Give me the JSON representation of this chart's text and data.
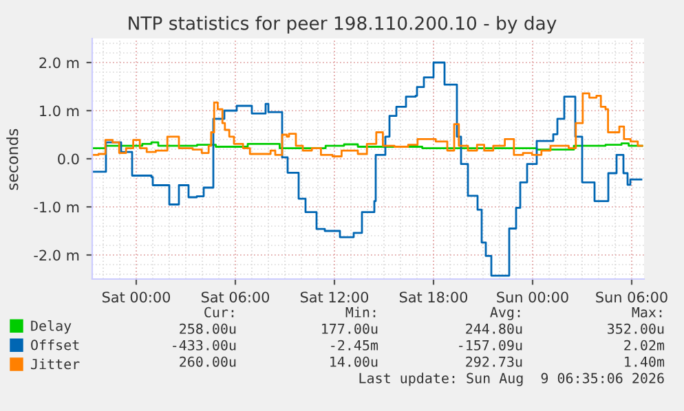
{
  "chart_data": {
    "type": "step",
    "title": "NTP statistics for peer 198.110.200.10 - by day",
    "ylabel": "seconds",
    "xlim": [
      "2026-08-07T21:20",
      "2026-08-09T06:45"
    ],
    "ylim": [
      -2.5,
      2.5
    ],
    "xticks": [
      {
        "value": "2026-08-08T00:00",
        "label": "Sat 00:00"
      },
      {
        "value": "2026-08-08T06:00",
        "label": "Sat 06:00"
      },
      {
        "value": "2026-08-08T12:00",
        "label": "Sat 12:00"
      },
      {
        "value": "2026-08-08T18:00",
        "label": "Sat 18:00"
      },
      {
        "value": "2026-08-09T00:00",
        "label": "Sun 00:00"
      },
      {
        "value": "2026-08-09T06:00",
        "label": "Sun 06:00"
      }
    ],
    "yticks": [
      {
        "value": -2,
        "label": "-2.0 m"
      },
      {
        "value": -1,
        "label": "-1.0 m"
      },
      {
        "value": 0,
        "label": "0.0"
      },
      {
        "value": 1,
        "label": "1.0 m"
      },
      {
        "value": 2,
        "label": "2.0 m"
      }
    ],
    "grid": true,
    "legend": "bottom",
    "marker": "none",
    "line_style": "solid",
    "series": [
      {
        "name": "Delay",
        "color": "#00cc00",
        "x": [
          "2026-08-07T21:20",
          "2026-08-07T22:08",
          "2026-08-08T00:22",
          "2026-08-08T00:55",
          "2026-08-08T01:20",
          "2026-08-08T03:41",
          "2026-08-08T04:49",
          "2026-08-08T06:45",
          "2026-08-08T08:41",
          "2026-08-08T10:38",
          "2026-08-08T11:28",
          "2026-08-08T12:35",
          "2026-08-08T13:25",
          "2026-08-08T17:19",
          "2026-08-08T21:28",
          "2026-08-09T00:15",
          "2026-08-09T02:30",
          "2026-08-09T04:25",
          "2026-08-09T05:23",
          "2026-08-09T05:49",
          "2026-08-09T06:38"
        ],
        "values": [
          0.22,
          0.27,
          0.31,
          0.34,
          0.27,
          0.29,
          0.25,
          0.31,
          0.22,
          0.22,
          0.27,
          0.3,
          0.25,
          0.22,
          0.22,
          0.19,
          0.27,
          0.29,
          0.32,
          0.27,
          0.27
        ]
      },
      {
        "name": "Offset",
        "color": "#0066b3",
        "x": [
          "2026-08-07T21:20",
          "2026-08-07T21:50",
          "2026-08-07T22:10",
          "2026-08-07T23:00",
          "2026-08-07T23:05",
          "2026-08-07T23:40",
          "2026-08-07T23:45",
          "2026-08-08T00:55",
          "2026-08-08T01:00",
          "2026-08-08T01:55",
          "2026-08-08T02:00",
          "2026-08-08T02:25",
          "2026-08-08T02:35",
          "2026-08-08T03:00",
          "2026-08-08T03:10",
          "2026-08-08T03:40",
          "2026-08-08T04:05",
          "2026-08-08T04:30",
          "2026-08-08T04:40",
          "2026-08-08T05:20",
          "2026-08-08T06:05",
          "2026-08-08T06:30",
          "2026-08-08T07:00",
          "2026-08-08T07:40",
          "2026-08-08T07:50",
          "2026-08-08T08:00",
          "2026-08-08T08:40",
          "2026-08-08T08:50",
          "2026-08-08T09:10",
          "2026-08-08T09:40",
          "2026-08-08T09:50",
          "2026-08-08T10:05",
          "2026-08-08T10:15",
          "2026-08-08T10:45",
          "2026-08-08T10:55",
          "2026-08-08T11:25",
          "2026-08-08T12:15",
          "2026-08-08T12:20",
          "2026-08-08T12:45",
          "2026-08-08T13:10",
          "2026-08-08T13:40",
          "2026-08-08T14:25",
          "2026-08-08T14:30",
          "2026-08-08T15:05",
          "2026-08-08T15:20",
          "2026-08-08T15:45",
          "2026-08-08T16:20",
          "2026-08-08T16:55",
          "2026-08-08T17:00",
          "2026-08-08T17:25",
          "2026-08-08T18:00",
          "2026-08-08T18:30",
          "2026-08-08T18:40",
          "2026-08-08T19:10",
          "2026-08-08T19:25",
          "2026-08-08T19:40",
          "2026-08-08T20:05",
          "2026-08-08T20:40",
          "2026-08-08T20:55",
          "2026-08-08T21:10",
          "2026-08-08T21:30",
          "2026-08-08T22:20",
          "2026-08-08T22:35",
          "2026-08-08T23:00",
          "2026-08-08T23:15",
          "2026-08-08T23:40",
          "2026-08-09T00:15",
          "2026-08-09T00:50",
          "2026-08-09T01:15",
          "2026-08-09T01:30",
          "2026-08-09T01:55",
          "2026-08-09T02:20",
          "2026-08-09T02:35",
          "2026-08-09T03:00",
          "2026-08-09T03:35",
          "2026-08-09T03:45",
          "2026-08-09T04:25",
          "2026-08-09T04:35",
          "2026-08-09T05:05",
          "2026-08-09T05:25",
          "2026-08-09T05:30",
          "2026-08-09T05:45",
          "2026-08-09T05:55",
          "2026-08-09T06:35"
        ],
        "values": [
          -0.27,
          -0.27,
          0.34,
          0.34,
          0.14,
          0.14,
          -0.35,
          -0.38,
          -0.55,
          -0.55,
          -0.95,
          -0.95,
          -0.55,
          -0.55,
          -0.8,
          -0.78,
          -0.6,
          -0.6,
          0.83,
          1.0,
          1.1,
          1.1,
          0.94,
          0.94,
          1.14,
          0.97,
          0.97,
          0.03,
          -0.29,
          -0.29,
          -0.83,
          -0.83,
          -1.11,
          -1.11,
          -1.46,
          -1.5,
          -1.5,
          -1.63,
          -1.63,
          -1.54,
          -1.11,
          -0.88,
          0.08,
          0.46,
          0.89,
          1.08,
          1.29,
          1.31,
          1.49,
          1.69,
          2.0,
          2.0,
          1.54,
          1.54,
          0.46,
          -0.11,
          -0.77,
          -1.06,
          -1.74,
          -2.02,
          -2.43,
          -2.43,
          -1.45,
          -1.02,
          -0.49,
          -0.11,
          0.37,
          0.37,
          0.51,
          0.83,
          1.29,
          1.29,
          0.46,
          -0.49,
          -0.49,
          -0.88,
          -0.88,
          -0.3,
          0.08,
          0.08,
          -0.3,
          -0.54,
          -0.43,
          -0.43
        ]
      },
      {
        "name": "Jitter",
        "color": "#ff8000",
        "x": [
          "2026-08-07T21:20",
          "2026-08-07T21:43",
          "2026-08-07T22:08",
          "2026-08-07T22:34",
          "2026-08-07T22:58",
          "2026-08-07T23:23",
          "2026-08-07T23:49",
          "2026-08-08T00:13",
          "2026-08-08T00:38",
          "2026-08-08T01:11",
          "2026-08-08T01:53",
          "2026-08-08T02:26",
          "2026-08-08T02:35",
          "2026-08-08T03:25",
          "2026-08-08T03:58",
          "2026-08-08T04:23",
          "2026-08-08T04:32",
          "2026-08-08T04:43",
          "2026-08-08T04:56",
          "2026-08-08T05:13",
          "2026-08-08T05:22",
          "2026-08-08T05:38",
          "2026-08-08T05:55",
          "2026-08-08T06:28",
          "2026-08-08T06:53",
          "2026-08-08T07:35",
          "2026-08-08T08:08",
          "2026-08-08T08:25",
          "2026-08-08T08:50",
          "2026-08-08T09:07",
          "2026-08-08T09:15",
          "2026-08-08T09:40",
          "2026-08-08T10:05",
          "2026-08-08T10:38",
          "2026-08-08T11:11",
          "2026-08-08T11:53",
          "2026-08-08T12:26",
          "2026-08-08T12:35",
          "2026-08-08T13:25",
          "2026-08-08T13:58",
          "2026-08-08T14:32",
          "2026-08-08T14:56",
          "2026-08-08T15:38",
          "2026-08-08T16:28",
          "2026-08-08T17:02",
          "2026-08-08T17:35",
          "2026-08-08T18:08",
          "2026-08-08T18:50",
          "2026-08-08T19:15",
          "2026-08-08T19:32",
          "2026-08-08T20:05",
          "2026-08-08T20:38",
          "2026-08-08T21:04",
          "2026-08-08T21:37",
          "2026-08-08T22:19",
          "2026-08-08T22:52",
          "2026-08-08T23:25",
          "2026-08-08T23:58",
          "2026-08-09T00:32",
          "2026-08-09T01:05",
          "2026-08-09T01:38",
          "2026-08-09T02:11",
          "2026-08-09T02:37",
          "2026-08-09T02:53",
          "2026-08-09T03:02",
          "2026-08-09T03:26",
          "2026-08-09T03:52",
          "2026-08-09T04:08",
          "2026-08-09T04:25",
          "2026-08-09T04:34",
          "2026-08-09T05:07",
          "2026-08-09T05:15",
          "2026-08-09T05:32",
          "2026-08-09T05:56",
          "2026-08-09T06:22",
          "2026-08-09T06:38"
        ],
        "values": [
          0.08,
          0.1,
          0.39,
          0.34,
          0.12,
          0.22,
          0.39,
          0.22,
          0.14,
          0.17,
          0.46,
          0.46,
          0.22,
          0.19,
          0.12,
          0.27,
          0.55,
          1.17,
          1.03,
          0.74,
          0.6,
          0.46,
          0.31,
          0.22,
          0.1,
          0.1,
          0.17,
          0.08,
          0.5,
          0.46,
          0.52,
          0.27,
          0.17,
          0.22,
          0.08,
          0.05,
          0.17,
          0.17,
          0.1,
          0.31,
          0.55,
          0.27,
          0.25,
          0.29,
          0.41,
          0.41,
          0.36,
          0.17,
          0.72,
          0.27,
          0.17,
          0.29,
          0.17,
          0.27,
          0.41,
          0.08,
          0.12,
          0.08,
          0.17,
          0.27,
          0.27,
          0.22,
          0.74,
          0.74,
          1.36,
          1.27,
          1.31,
          1.08,
          1.03,
          0.55,
          0.55,
          0.67,
          0.41,
          0.36,
          0.27,
          0.27
        ]
      }
    ],
    "annotations": [
      "Cur:",
      "Min:",
      "Avg:",
      "Max:",
      "258.00u",
      "177.00u",
      "244.80u",
      "352.00u",
      "-433.00u",
      "-2.45m",
      "-157.09u",
      "2.02m",
      "260.00u",
      "14.00u",
      "292.73u",
      "1.40m",
      "Last update: Sun Aug  9 06:35:06 2026"
    ]
  }
}
